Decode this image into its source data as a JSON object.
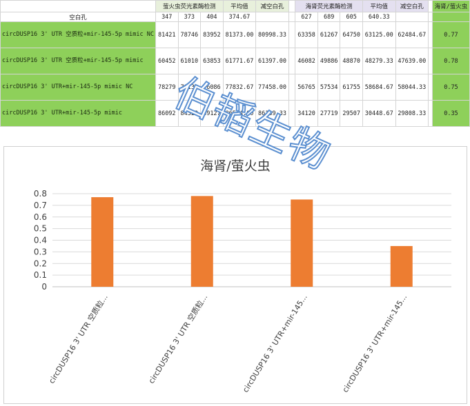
{
  "table": {
    "header_firefly": "萤火虫荧光素酶检测",
    "header_avg1": "平均值",
    "header_blank1": "减空白孔",
    "header_renilla": "海肾荧光素酶检测",
    "header_avg2": "平均值",
    "header_blank2": "减空白孔",
    "header_ratio": "海肾/萤火虫",
    "blank_row": {
      "label": "空白孔",
      "f1": "347",
      "f2": "373",
      "f3": "404",
      "favg": "374.67",
      "r1": "627",
      "r2": "689",
      "r3": "605",
      "ravg": "640.33"
    },
    "rows": [
      {
        "label": "circDUSP16 3' UTR 空质粒+mir-145-5p mimic NC",
        "f1": "81421",
        "f2": "78746",
        "f3": "83952",
        "favg": "81373.00",
        "fblank": "80998.33",
        "r1": "63358",
        "r2": "61267",
        "r3": "64750",
        "ravg": "63125.00",
        "rblank": "62484.67",
        "ratio": "0.77"
      },
      {
        "label": "circDUSP16 3' UTR 空质粒+mir-145-5p mimic",
        "f1": "60452",
        "f2": "61010",
        "f3": "63853",
        "favg": "61771.67",
        "fblank": "61397.00",
        "r1": "46082",
        "r2": "49886",
        "r3": "48870",
        "ravg": "48279.33",
        "rblank": "47639.00",
        "ratio": "0.78"
      },
      {
        "label": "circDUSP16 3' UTR+mir-145-5p mimic NC",
        "f1": "78279",
        "f2": "79133",
        "f3": "76086",
        "favg": "77832.67",
        "fblank": "77458.00",
        "r1": "56765",
        "r2": "57534",
        "r3": "61755",
        "ravg": "58684.67",
        "rblank": "58044.33",
        "ratio": "0.75"
      },
      {
        "label": "circDUSP16 3' UTR+mir-145-5p mimic",
        "f1": "86092",
        "f2": "84323",
        "f3": "89127",
        "favg": "86514.00",
        "fblank": "86139.33",
        "r1": "34120",
        "r2": "27719",
        "r3": "29507",
        "ravg": "30448.67",
        "rblank": "29808.33",
        "ratio": "0.35"
      }
    ]
  },
  "watermark": "伯韬生物",
  "colors": {
    "bar": "#ed7d31",
    "label_fill": "#8ed05a",
    "grid": "#d9d9d9",
    "watermark_outline": "#5b8fd0"
  },
  "chart_data": {
    "type": "bar",
    "title": "海肾/萤火虫",
    "categories": [
      "circDUSP16 3' UTR 空质粒...",
      "circDUSP16 3' UTR 空质粒...",
      "circDUSP16 3' UTR+mir-145...",
      "circDUSP16 3' UTR+mir-145..."
    ],
    "values": [
      0.77,
      0.78,
      0.75,
      0.35
    ],
    "ylim": [
      0,
      0.8
    ],
    "yticks": [
      "0",
      "0.1",
      "0.2",
      "0.3",
      "0.4",
      "0.5",
      "0.6",
      "0.7",
      "0.8"
    ],
    "grid": true,
    "legend": "none"
  }
}
